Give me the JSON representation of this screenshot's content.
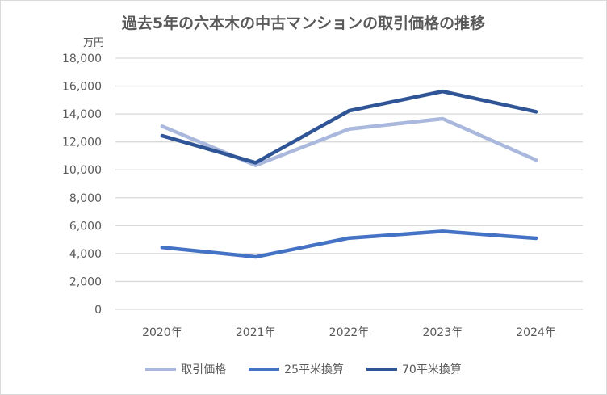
{
  "chart_data": {
    "type": "line",
    "title": "過去5年の六本木の中古マンションの取引価格の推移",
    "ylabel": "万円",
    "xlabel": "",
    "categories": [
      "2020年",
      "2021年",
      "2022年",
      "2023年",
      "2024年"
    ],
    "ylim": [
      0,
      18000
    ],
    "yticks": [
      0,
      2000,
      4000,
      6000,
      8000,
      10000,
      12000,
      14000,
      16000,
      18000
    ],
    "ytick_labels": [
      "0",
      "2,000",
      "4,000",
      "6,000",
      "8,000",
      "10,000",
      "12,000",
      "14,000",
      "16,000",
      "18,000"
    ],
    "grid": true,
    "legend_position": "bottom",
    "series": [
      {
        "name": "取引価格",
        "color": "#a9b8dc",
        "values": [
          13120,
          10320,
          12920,
          13660,
          10700
        ]
      },
      {
        "name": "25平米換算",
        "color": "#4472c4",
        "values": [
          4440,
          3760,
          5110,
          5590,
          5090
        ]
      },
      {
        "name": "70平米換算",
        "color": "#2f5597",
        "values": [
          12440,
          10510,
          14230,
          15620,
          14160
        ]
      }
    ]
  }
}
